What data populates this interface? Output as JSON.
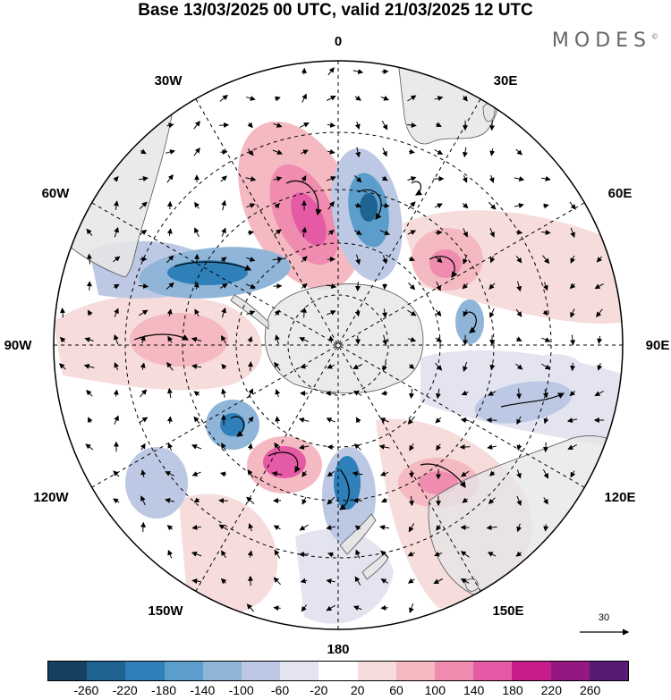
{
  "title": "Base 13/03/2025 00 UTC, valid 21/03/2025 12 UTC",
  "brand": "MODES",
  "brand_mark": "©",
  "projection": "south-polar-stereographic",
  "longitude_labels": {
    "top": "0",
    "top_right": "30E",
    "right_upper": "60E",
    "right": "90E",
    "right_lower": "120E",
    "bottom_right": "150E",
    "bottom": "180",
    "bottom_left": "150W",
    "left_lower": "120W",
    "left": "90W",
    "left_upper": "60W",
    "top_left": "30W"
  },
  "reference_vector": "30",
  "colorbar": {
    "colors": [
      "#16405f",
      "#1f6391",
      "#2f80b8",
      "#5c9ecb",
      "#8fb5d8",
      "#bdc9e4",
      "#e4e4f1",
      "#ffffff",
      "#f7dcdc",
      "#f4b9c1",
      "#f08cb0",
      "#e55aa4",
      "#c81d8b",
      "#951780",
      "#581a74"
    ],
    "tick_labels": [
      "-260",
      "-220",
      "-180",
      "-140",
      "-100",
      "-60",
      "-20",
      "20",
      "60",
      "100",
      "140",
      "180",
      "220",
      "260"
    ]
  },
  "field_colors": {
    "land": "#e6e6e6",
    "positive_weak": "#f7dcdc",
    "positive_mid": "#f4b9c1",
    "positive_strong": "#e55aa4",
    "negative_weak": "#e4e4f1",
    "negative_mid": "#bdc9e4",
    "negative_strong": "#2f80b8"
  }
}
